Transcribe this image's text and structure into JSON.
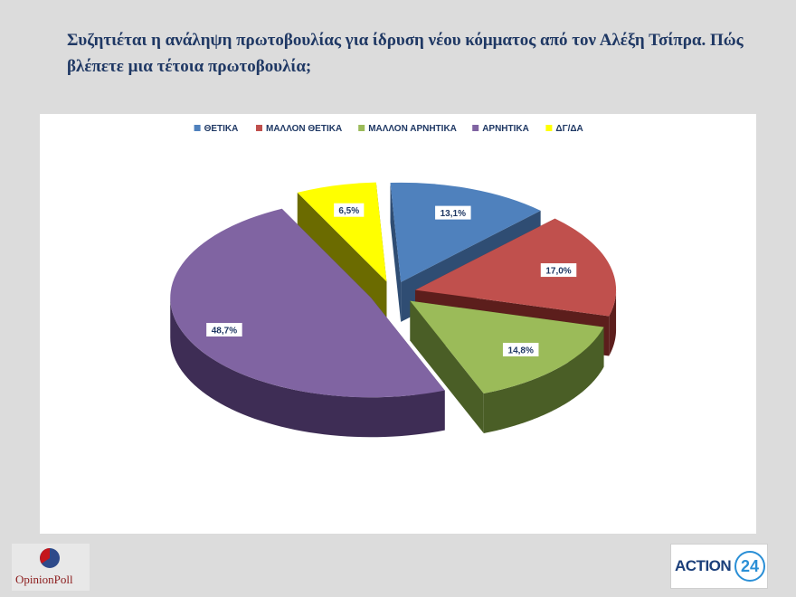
{
  "title": "Συζητιέται η ανάληψη πρωτοβουλίας για ίδρυση νέου κόμματος από τον Αλέξη Τσίπρα. Πώς βλέπετε μια τέτοια πρωτοβουλία;",
  "brand_left": {
    "name": "OpinionPoll"
  },
  "brand_right": {
    "name": "ACTION",
    "number": "24"
  },
  "chart_data": {
    "type": "pie",
    "title": "",
    "legend_position": "top",
    "exploded": true,
    "three_d": true,
    "slices": [
      {
        "label": "ΘΕΤΙΚΑ",
        "value": 13.1,
        "display": "13,1%",
        "color": "#4f81bd",
        "side": "#2f4d73"
      },
      {
        "label": "ΜΑΛΛΟΝ ΘΕΤΙΚΑ",
        "value": 17.0,
        "display": "17,0%",
        "color": "#c0504d",
        "side": "#5c1e1c"
      },
      {
        "label": "ΜΑΛΛΟΝ ΑΡΝΗΤΙΚΑ",
        "value": 14.8,
        "display": "14,8%",
        "color": "#9bbb59",
        "side": "#4a5e26"
      },
      {
        "label": "ΑΡΝΗΤΙΚΑ",
        "value": 48.7,
        "display": "48,7%",
        "color": "#8064a2",
        "side": "#3e2d55"
      },
      {
        "label": "ΔΓ/ΔΑ",
        "value": 6.5,
        "display": "6,5%",
        "color": "#ffff00",
        "side": "#6b6b00"
      }
    ]
  }
}
